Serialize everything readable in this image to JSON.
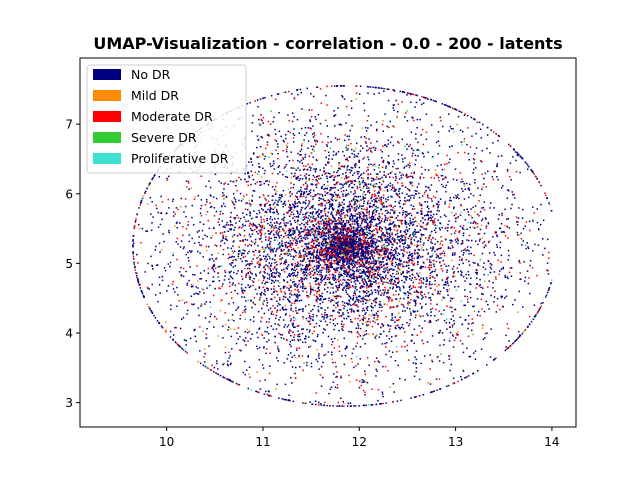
{
  "chart_data": {
    "type": "scatter",
    "title": "UMAP-Visualization - correlation - 0.0 - 200 - latents",
    "xlabel": "",
    "ylabel": "",
    "xlim": [
      9.1,
      14.25
    ],
    "ylim": [
      2.65,
      7.95
    ],
    "x_ticks": [
      "10",
      "11",
      "12",
      "13",
      "14"
    ],
    "y_ticks": [
      "3",
      "4",
      "5",
      "6",
      "7"
    ],
    "grid": false,
    "legend_position": "top-left",
    "cloud": {
      "center_x": 11.85,
      "center_y": 5.25,
      "radius_x": 2.2,
      "radius_y": 2.3,
      "extent_x": [
        9.3,
        14.0
      ],
      "extent_y": [
        2.9,
        7.75
      ]
    },
    "series": [
      {
        "name": "No DR",
        "color": "#000080",
        "approx_points": 6000
      },
      {
        "name": "Mild DR",
        "color": "#FF8C00",
        "approx_points": 400
      },
      {
        "name": "Moderate DR",
        "color": "#FF0000",
        "approx_points": 1600
      },
      {
        "name": "Severe DR",
        "color": "#32CD32",
        "approx_points": 120
      },
      {
        "name": "Proliferative DR",
        "color": "#40E0D0",
        "approx_points": 90
      }
    ]
  }
}
